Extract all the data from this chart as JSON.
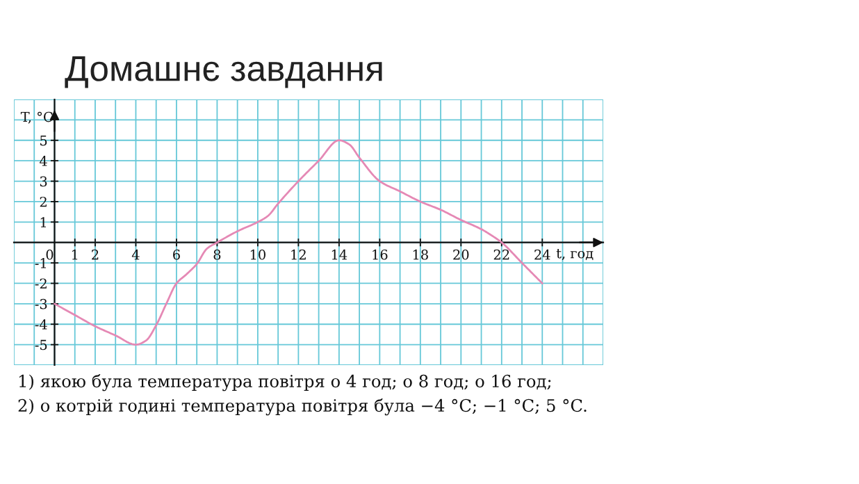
{
  "chart_data": {
    "type": "line",
    "title": "Домашнє завдання",
    "xlabel": "t, год",
    "ylabel": "T, °C",
    "x": [
      0,
      1,
      2,
      3,
      4,
      4.5,
      5,
      5.5,
      6,
      6.5,
      7,
      7.5,
      8,
      9,
      10,
      10.5,
      11,
      12,
      13,
      14,
      14.5,
      15,
      16,
      17,
      18,
      19,
      20,
      21,
      21.5,
      22,
      23,
      24
    ],
    "series": [
      {
        "color": "#e589b5",
        "values": [
          -3,
          -3.55,
          -4.1,
          -4.55,
          -5,
          -4.8,
          -4.05,
          -3,
          -2,
          -1.55,
          -1.05,
          -0.3,
          0,
          0.55,
          1,
          1.3,
          1.9,
          3,
          4,
          5,
          4.8,
          4.15,
          3,
          2.5,
          2,
          1.6,
          1.1,
          0.65,
          0.35,
          0,
          -1,
          -2
        ]
      }
    ],
    "xlim": [
      -2,
      27
    ],
    "ylim": [
      -6,
      7
    ],
    "xticks": [
      {
        "value": -2,
        "label": null
      },
      {
        "value": -1,
        "label": null
      },
      0,
      1,
      2,
      {
        "value": 3,
        "label": null
      },
      4,
      {
        "value": 5,
        "label": null
      },
      6,
      {
        "value": 7,
        "label": null
      },
      8,
      {
        "value": 9,
        "label": null
      },
      10,
      {
        "value": 11,
        "label": null
      },
      12,
      {
        "value": 13,
        "label": null
      },
      14,
      {
        "value": 15,
        "label": null
      },
      16,
      {
        "value": 17,
        "label": null
      },
      18,
      {
        "value": 19,
        "label": null
      },
      20,
      {
        "value": 21,
        "label": null
      },
      22,
      {
        "value": 23,
        "label": null
      },
      24,
      {
        "value": 25,
        "label": null
      },
      {
        "value": 26,
        "label": null
      },
      {
        "value": 27,
        "label": null
      }
    ],
    "yticks": [
      {
        "value": -6,
        "label": null
      },
      -5,
      -4,
      -3,
      -2,
      -1,
      {
        "value": 0,
        "label": null
      },
      1,
      2,
      3,
      4,
      5,
      {
        "value": 6,
        "label": null
      },
      {
        "value": 7,
        "label": null
      }
    ],
    "grid": true,
    "annotations": [
      "1) якою була температура повітря о 4 год; о 8 год; о 16 год;",
      "2) о котрій годині температура повітря була −4 °C; −1 °C; 5 °C."
    ]
  }
}
